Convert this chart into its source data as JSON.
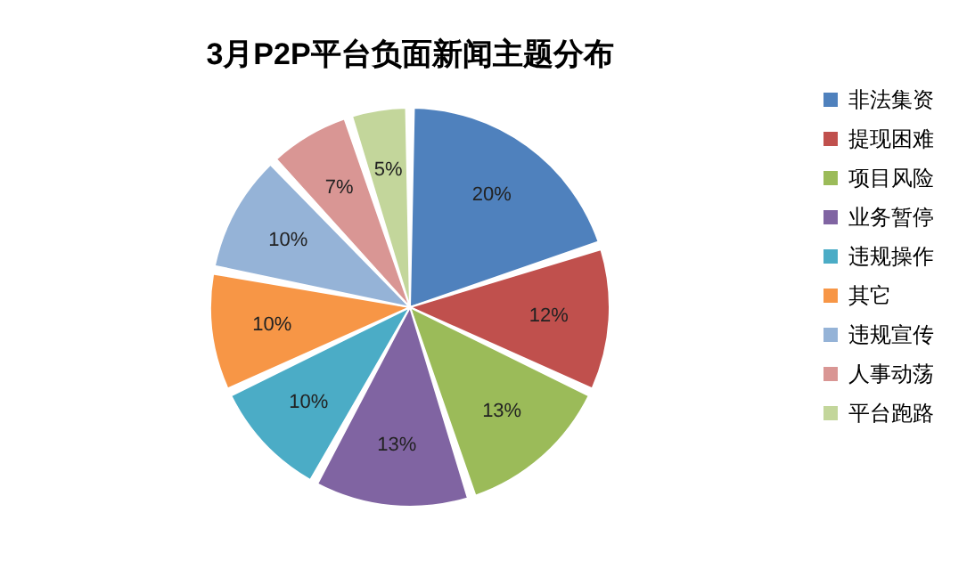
{
  "chart_data": {
    "type": "pie",
    "title": "3月P2P平台负面新闻主题分布",
    "categories": [
      "非法集资",
      "提现困难",
      "项目风险",
      "业务暂停",
      "违规操作",
      "其它",
      "违规宣传",
      "人事动荡",
      "平台跑路"
    ],
    "values": [
      20,
      12,
      13,
      13,
      10,
      10,
      10,
      7,
      5
    ],
    "value_labels": [
      "20%",
      "12%",
      "13%",
      "13%",
      "10%",
      "10%",
      "10%",
      "7%",
      "5%"
    ],
    "colors": [
      "#4f81bd",
      "#c0504d",
      "#9bbb59",
      "#8064a2",
      "#4bacc6",
      "#f79646",
      "#95b3d7",
      "#d99694",
      "#c3d69b"
    ],
    "legend": "right"
  }
}
